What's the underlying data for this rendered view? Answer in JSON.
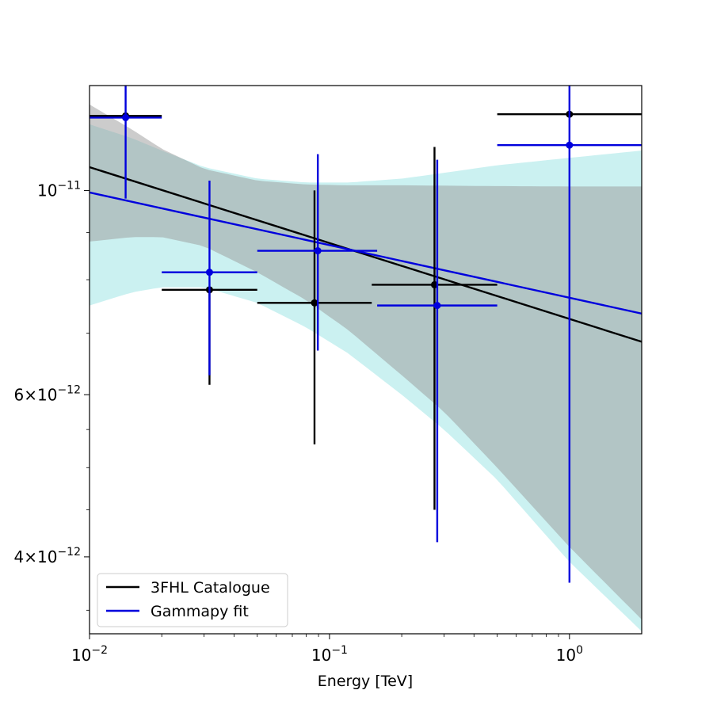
{
  "chart_data": {
    "type": "scatter",
    "title": "",
    "xlabel": "Energy [TeV]",
    "ylabel": "",
    "xscale": "log",
    "yscale": "log",
    "xlim": [
      0.01,
      2.0
    ],
    "ylim": [
      3.3e-12,
      1.3e-11
    ],
    "grid": false,
    "legend_position": "lower-left",
    "x_ticks": [
      {
        "value": 0.01,
        "base": "10",
        "exp": "−2"
      },
      {
        "value": 0.1,
        "base": "10",
        "exp": "−1"
      },
      {
        "value": 1.0,
        "base": "10",
        "exp": "0"
      }
    ],
    "y_ticks": [
      {
        "value": 1e-11,
        "mant": "",
        "base": "10",
        "exp": "−11"
      },
      {
        "value": 6e-12,
        "mant": "6×",
        "base": "10",
        "exp": "−12"
      },
      {
        "value": 4e-12,
        "mant": "4×",
        "base": "10",
        "exp": "−12"
      }
    ],
    "y_minor_ticks": [
      3.5e-12,
      4.5e-12,
      5e-12,
      5.5e-12,
      7e-12,
      8e-12,
      9e-12
    ],
    "series": [
      {
        "name": "3FHL Catalogue",
        "color": "#000000",
        "band_color": "#c8c8c8",
        "model_line": {
          "x": [
            0.01,
            2.0
          ],
          "y": [
            1.06e-11,
            6.85e-12
          ]
        },
        "band": {
          "x": [
            0.01,
            0.015,
            0.02,
            0.03,
            0.05,
            0.08,
            0.12,
            0.2,
            0.3,
            0.5,
            1.0,
            2.0
          ],
          "upper": [
            1.24e-11,
            1.165e-11,
            1.11e-11,
            1.055e-11,
            1.025e-11,
            1.015e-11,
            1.013e-11,
            1.013e-11,
            1.012e-11,
            1.011e-11,
            1.01e-11,
            1.01e-11
          ],
          "lower": [
            8.8e-12,
            8.9e-12,
            8.9e-12,
            8.7e-12,
            8.15e-12,
            7.6e-12,
            7.05e-12,
            6.3e-12,
            5.75e-12,
            5e-12,
            4.1e-12,
            3.42e-12
          ]
        },
        "points": [
          {
            "x": 0.01414,
            "y": 1.205e-11,
            "xlo": 0.01,
            "xhi": 0.02,
            "ylo": 1.205e-11,
            "yhi": 1.205e-11
          },
          {
            "x": 0.03162,
            "y": 7.8e-12,
            "xlo": 0.02,
            "xhi": 0.05,
            "ylo": 6.15e-12,
            "yhi": 7.8e-12
          },
          {
            "x": 0.0866,
            "y": 7.55e-12,
            "xlo": 0.05,
            "xhi": 0.15,
            "ylo": 5.3e-12,
            "yhi": 1e-11
          },
          {
            "x": 0.2739,
            "y": 7.9e-12,
            "xlo": 0.15,
            "xhi": 0.5,
            "ylo": 4.5e-12,
            "yhi": 1.115e-11
          },
          {
            "x": 1.0,
            "y": 1.21e-11,
            "xlo": 0.5,
            "xhi": 2.0,
            "ylo": 1.21e-11,
            "yhi": 1.21e-11
          }
        ]
      },
      {
        "name": "Gammapy fit",
        "color": "#0000dd",
        "band_color": "#a8e8e8",
        "model_line": {
          "x": [
            0.01,
            2.0
          ],
          "y": [
            9.95e-12,
            7.35e-12
          ]
        },
        "band": {
          "x": [
            0.01,
            0.015,
            0.02,
            0.03,
            0.05,
            0.08,
            0.12,
            0.2,
            0.3,
            0.5,
            1.0,
            2.0
          ],
          "upper": [
            1.18e-11,
            1.14e-11,
            1.105e-11,
            1.06e-11,
            1.03e-11,
            1.02e-11,
            1.02e-11,
            1.03e-11,
            1.045e-11,
            1.065e-11,
            1.085e-11,
            1.105e-11
          ],
          "lower": [
            7.5e-12,
            7.75e-12,
            7.85e-12,
            7.85e-12,
            7.55e-12,
            7.1e-12,
            6.65e-12,
            6e-12,
            5.5e-12,
            4.85e-12,
            3.95e-12,
            3.32e-12
          ]
        },
        "points": [
          {
            "x": 0.01414,
            "y": 1.2e-11,
            "xlo": 0.01,
            "xhi": 0.02,
            "ylo": 9.8e-12,
            "yhi": 1.3e-11
          },
          {
            "x": 0.03162,
            "y": 8.15e-12,
            "xlo": 0.02,
            "xhi": 0.05,
            "ylo": 6.3e-12,
            "yhi": 1.025e-11
          },
          {
            "x": 0.0894,
            "y": 8.6e-12,
            "xlo": 0.05,
            "xhi": 0.158,
            "ylo": 6.7e-12,
            "yhi": 1.095e-11
          },
          {
            "x": 0.2812,
            "y": 7.5e-12,
            "xlo": 0.158,
            "xhi": 0.5,
            "ylo": 4.15e-12,
            "yhi": 1.08e-11
          },
          {
            "x": 1.0,
            "y": 1.12e-11,
            "xlo": 0.5,
            "xhi": 2.0,
            "ylo": 3.75e-12,
            "yhi": 1.3e-11
          }
        ]
      }
    ]
  }
}
